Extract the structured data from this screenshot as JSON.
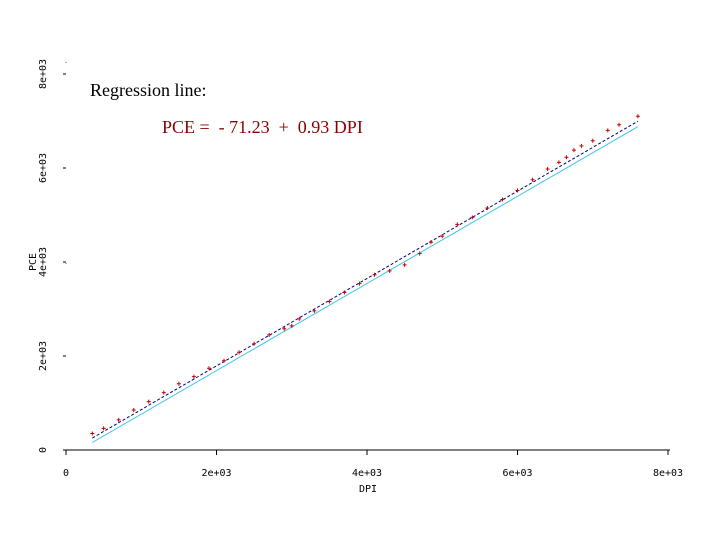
{
  "chart_data": {
    "type": "scatter",
    "title": "",
    "xlabel": "DPI",
    "ylabel": "PCE",
    "xlim": [
      0,
      8000
    ],
    "ylim": [
      0,
      8000
    ],
    "x_ticks": [
      0,
      2000,
      4000,
      6000,
      8000
    ],
    "x_tick_labels": [
      "0",
      "2e+03",
      "4e+03",
      "6e+03",
      "8e+03"
    ],
    "y_ticks": [
      0,
      2000,
      4000,
      6000,
      8000
    ],
    "y_tick_labels": [
      "0",
      "2e+03",
      "4e+03",
      "6e+03",
      "8e+03"
    ],
    "grid": false,
    "annotations": [
      {
        "text": "Regression line:"
      },
      {
        "text": "PCE =  - 71.23  +  0.93 DPI"
      }
    ],
    "regression": {
      "intercept": -71.23,
      "slope": 0.93
    },
    "lines": [
      {
        "style": "dashed",
        "color": "#000080",
        "x": [
          350,
          7600
        ],
        "y": [
          255,
          6996
        ]
      },
      {
        "style": "solid",
        "color": "#40c8e0",
        "x": [
          350,
          7600
        ],
        "y": [
          160,
          6880
        ]
      }
    ],
    "series": [
      {
        "color": "#cc0000",
        "marker": "+",
        "x": [
          350,
          500,
          700,
          900,
          1100,
          1300,
          1500,
          1700,
          1900,
          2100,
          2300,
          2500,
          2700,
          2900,
          3000,
          3100,
          3300,
          3500,
          3700,
          3900,
          4100,
          4300,
          4500,
          4700,
          4850,
          5000,
          5200,
          5400,
          5600,
          5800,
          6000,
          6200,
          6400,
          6550,
          6650,
          6750,
          6850,
          7000,
          7200,
          7350,
          7600
        ],
        "y": [
          350,
          460,
          640,
          850,
          1030,
          1220,
          1410,
          1560,
          1740,
          1900,
          2080,
          2260,
          2450,
          2580,
          2640,
          2790,
          2960,
          3160,
          3350,
          3540,
          3730,
          3810,
          3940,
          4180,
          4420,
          4550,
          4800,
          4950,
          5150,
          5330,
          5520,
          5750,
          5980,
          6120,
          6230,
          6380,
          6470,
          6580,
          6800,
          6920,
          7100
        ]
      }
    ]
  }
}
